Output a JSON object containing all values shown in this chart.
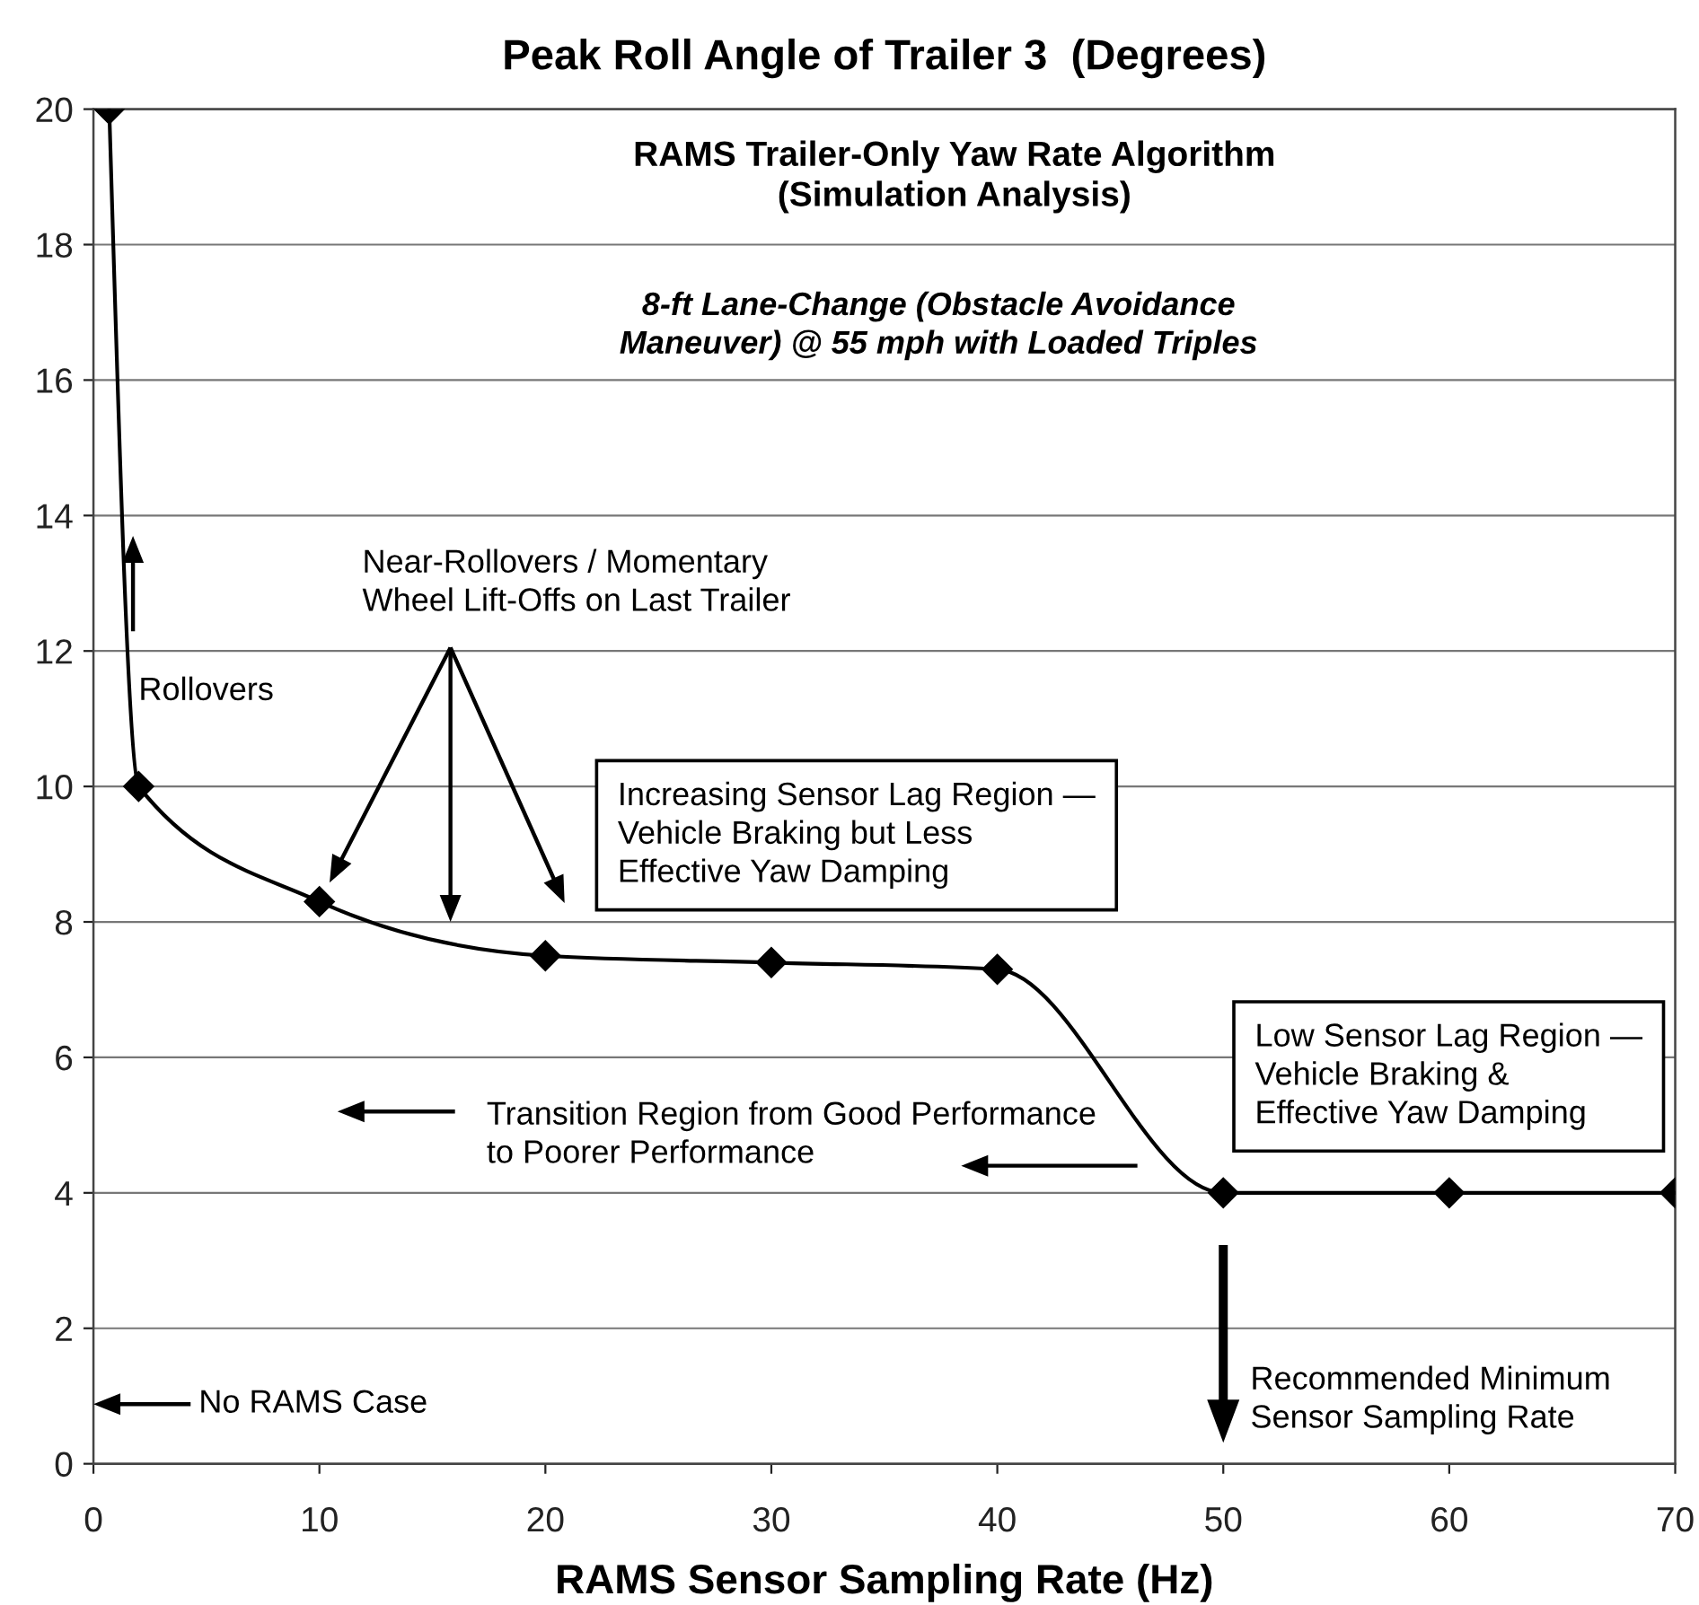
{
  "chart_data": {
    "type": "line",
    "title": "Peak Roll Angle of Trailer 3  (Degrees)",
    "subtitle": "RAMS Trailer-Only Yaw Rate Algorithm\n(Simulation Analysis)",
    "xlabel": "RAMS Sensor Sampling Rate (Hz)",
    "annotations": [
      "8-ft Lane-Change (Obstacle Avoidance\nManeuver) @ 55 mph with Loaded Triples",
      "Near-Rollovers / Momentary\nWheel Lift-Offs on Last Trailer",
      "Rollovers",
      "Increasing Sensor Lag Region —\nVehicle Braking but Less\nEffective Yaw Damping",
      "Low Sensor Lag Region —\nVehicle Braking &\nEffective Yaw Damping",
      "Transition Region from Good Performance\nto Poorer Performance",
      "No RAMS Case",
      "Recommended Minimum\nSensor Sampling Rate"
    ],
    "x": [
      0.7,
      2,
      10,
      20,
      30,
      40,
      50,
      60,
      70
    ],
    "series": [
      {
        "color": "#000000",
        "values": [
          20,
          10,
          8.3,
          7.5,
          7.4,
          7.3,
          4,
          4,
          4
        ]
      }
    ],
    "xlim": [
      0,
      70
    ],
    "ylim": [
      0,
      20
    ],
    "xticks": [
      0,
      10,
      20,
      30,
      40,
      50,
      60,
      70
    ],
    "yticks": [
      0,
      2,
      4,
      6,
      8,
      10,
      12,
      14,
      16,
      18,
      20
    ],
    "grid": "y",
    "marker": "diamond",
    "line_style": "solid"
  }
}
